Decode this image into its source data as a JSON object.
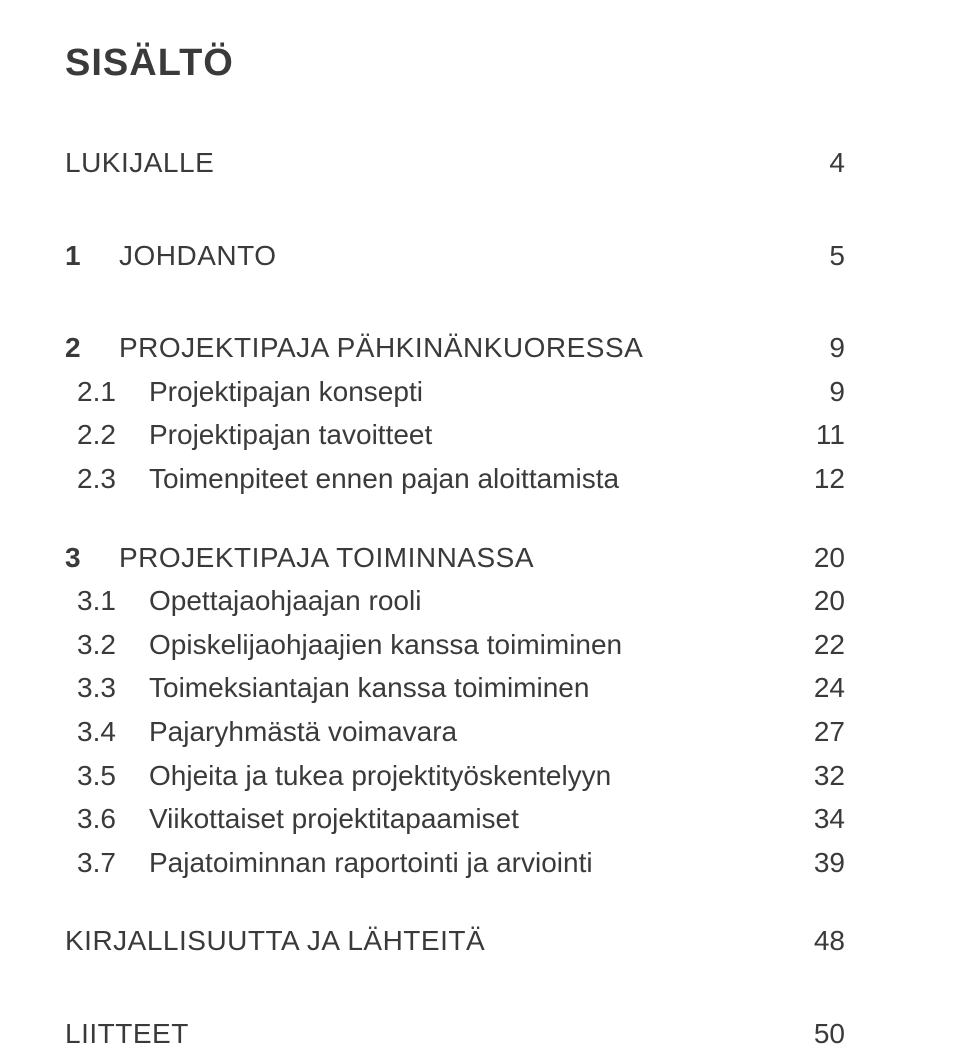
{
  "title": "SISÄLTÖ",
  "entries": [
    {
      "kind": "main",
      "num": "",
      "label": "LUKIJALLE",
      "page": "4",
      "bold": false,
      "gapClass": "toc-row-main"
    },
    {
      "kind": "main",
      "num": "1",
      "label": "JOHDANTO",
      "page": "5",
      "bold": true,
      "gapClass": "toc-row-solo"
    },
    {
      "kind": "main",
      "num": "2",
      "label": "PROJEKTIPAJA PÄHKINÄNKUORESSA",
      "page": "9",
      "bold": true,
      "gapClass": "toc-row-solo"
    },
    {
      "kind": "sub",
      "num": "2.1",
      "label": "Projektipajan konsepti",
      "page": "9",
      "gapClass": "toc-row-sub"
    },
    {
      "kind": "sub",
      "num": "2.2",
      "label": "Projektipajan tavoitteet",
      "page": "11",
      "gapClass": "toc-row-sub"
    },
    {
      "kind": "sub",
      "num": "2.3",
      "label": "Toimenpiteet ennen pajan aloittamista",
      "page": "12",
      "gapClass": "toc-row-sub"
    },
    {
      "kind": "main",
      "num": "3",
      "label": "PROJEKTIPAJA TOIMINNASSA",
      "page": "20",
      "bold": true,
      "gapClass": "toc-row-main"
    },
    {
      "kind": "sub",
      "num": "3.1",
      "label": "Opettajaohjaajan rooli",
      "page": "20",
      "gapClass": "toc-row-sub"
    },
    {
      "kind": "sub",
      "num": "3.2",
      "label": "Opiskelijaohjaajien kanssa toimiminen",
      "page": "22",
      "gapClass": "toc-row-sub"
    },
    {
      "kind": "sub",
      "num": "3.3",
      "label": "Toimeksiantajan kanssa toimiminen",
      "page": "24",
      "gapClass": "toc-row-sub"
    },
    {
      "kind": "sub",
      "num": "3.4",
      "label": "Pajaryhmästä voimavara",
      "page": "27",
      "gapClass": "toc-row-sub"
    },
    {
      "kind": "sub",
      "num": "3.5",
      "label": "Ohjeita ja tukea projektityöskentelyyn",
      "page": "32",
      "gapClass": "toc-row-sub"
    },
    {
      "kind": "sub",
      "num": "3.6",
      "label": "Viikottaiset projektitapaamiset",
      "page": "34",
      "gapClass": "toc-row-sub"
    },
    {
      "kind": "sub",
      "num": "3.7",
      "label": "Pajatoiminnan raportointi ja arviointi",
      "page": "39",
      "gapClass": "toc-row-sub"
    },
    {
      "kind": "main",
      "num": "",
      "label": "KIRJALLISUUTTA JA LÄHTEITÄ",
      "page": "48",
      "bold": false,
      "gapClass": "toc-row-main"
    },
    {
      "kind": "main",
      "num": "",
      "label": "LIITTEET",
      "page": "50",
      "bold": false,
      "gapClass": "toc-row-solo2"
    }
  ]
}
